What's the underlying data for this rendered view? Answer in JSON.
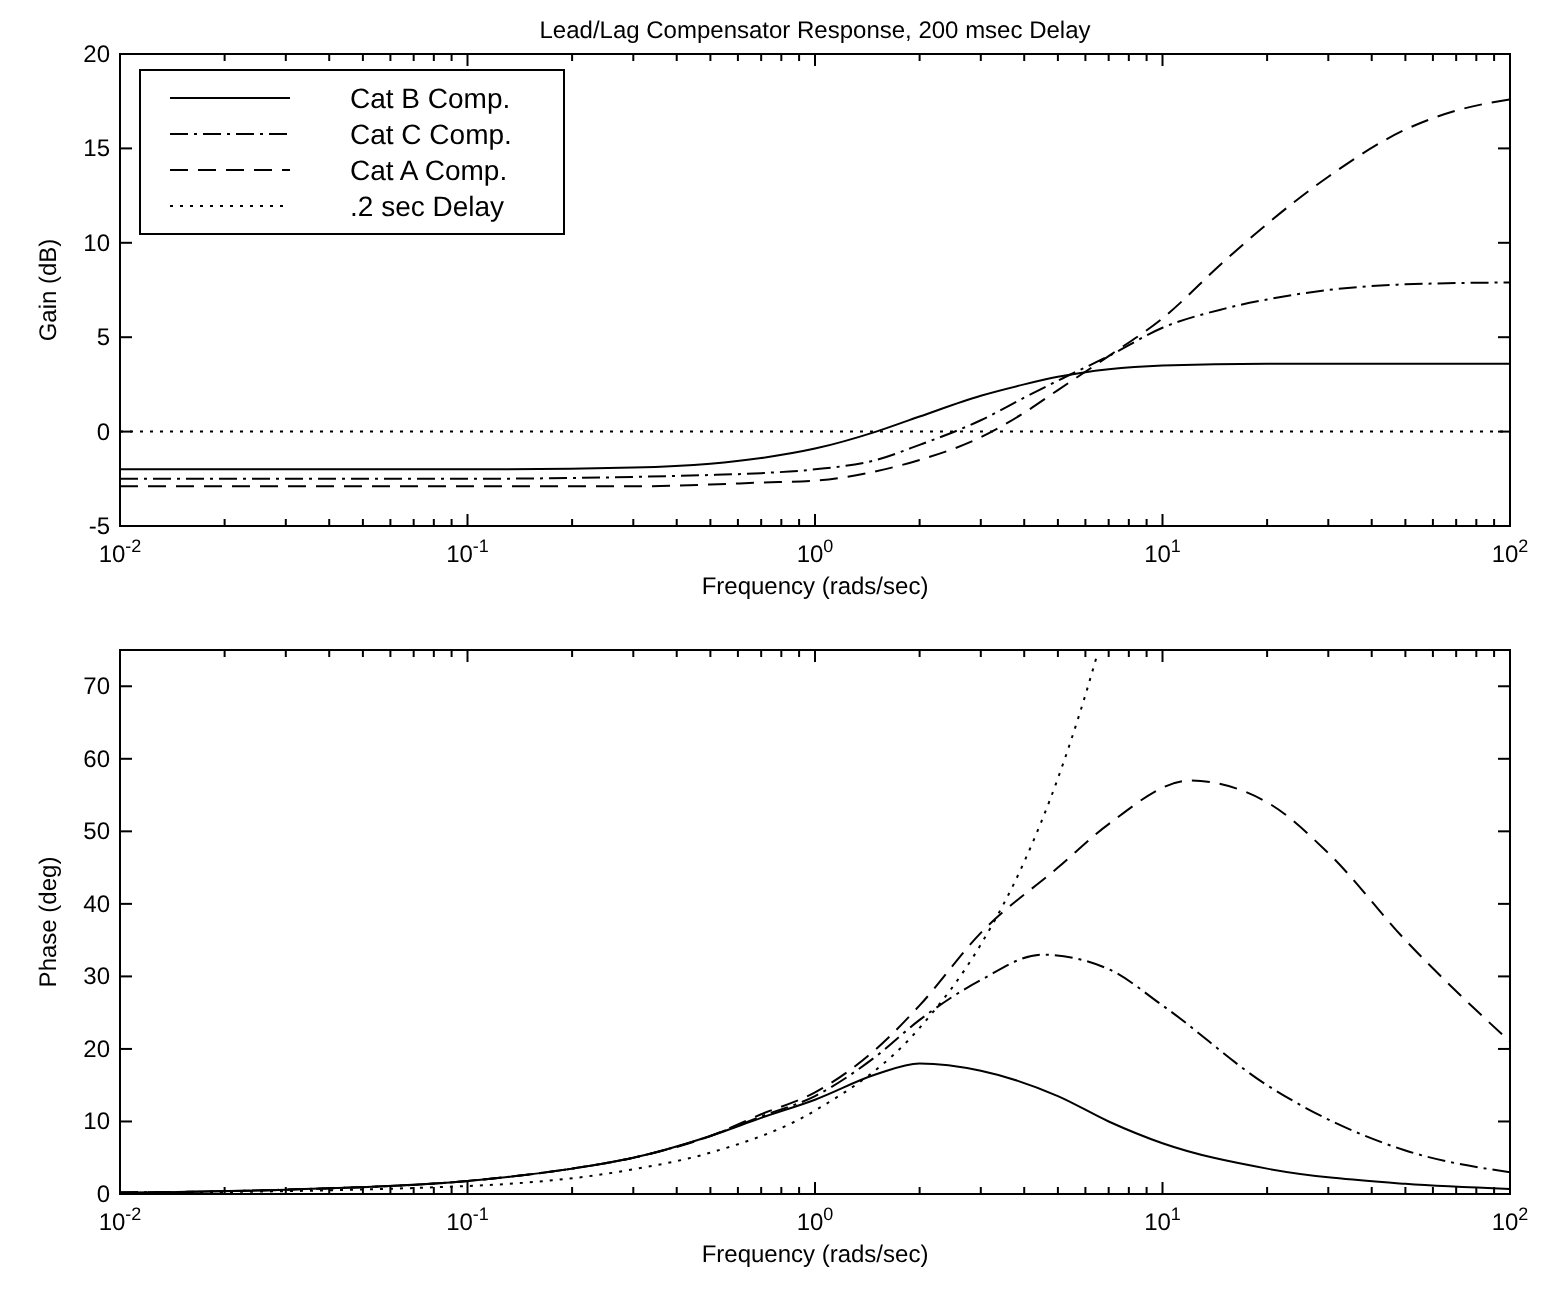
{
  "chart_data": [
    {
      "type": "line",
      "title": "Lead/Lag Compensator Response, 200 msec Delay",
      "xlabel": "Frequency (rads/sec)",
      "ylabel": "Gain (dB)",
      "log": "x",
      "grid": false,
      "legend": "top left",
      "xlim": [
        0.01,
        100
      ],
      "ylim": [
        -5,
        20
      ],
      "xticks": [
        {
          "value": 0.01,
          "label": "10$^{-2}$"
        },
        {
          "value": 0.02,
          "label": null
        },
        {
          "value": 0.03,
          "label": null
        },
        {
          "value": 0.04,
          "label": null
        },
        {
          "value": 0.05,
          "label": null
        },
        {
          "value": 0.06,
          "label": null
        },
        {
          "value": 0.07,
          "label": null
        },
        {
          "value": 0.08,
          "label": null
        },
        {
          "value": 0.09,
          "label": null
        },
        {
          "value": 0.1,
          "label": "10$^{-1}$"
        },
        {
          "value": 0.2,
          "label": null
        },
        {
          "value": 0.3,
          "label": null
        },
        {
          "value": 0.4,
          "label": null
        },
        {
          "value": 0.5,
          "label": null
        },
        {
          "value": 0.6,
          "label": null
        },
        {
          "value": 0.7,
          "label": null
        },
        {
          "value": 0.8,
          "label": null
        },
        {
          "value": 0.9,
          "label": null
        },
        {
          "value": 1,
          "label": "10$^{0}$"
        },
        {
          "value": 2,
          "label": null
        },
        {
          "value": 3,
          "label": null
        },
        {
          "value": 4,
          "label": null
        },
        {
          "value": 5,
          "label": null
        },
        {
          "value": 6,
          "label": null
        },
        {
          "value": 7,
          "label": null
        },
        {
          "value": 8,
          "label": null
        },
        {
          "value": 9,
          "label": null
        },
        {
          "value": 10,
          "label": "10$^{1}$"
        },
        {
          "value": 20,
          "label": null
        },
        {
          "value": 30,
          "label": null
        },
        {
          "value": 40,
          "label": null
        },
        {
          "value": 50,
          "label": null
        },
        {
          "value": 60,
          "label": null
        },
        {
          "value": 70,
          "label": null
        },
        {
          "value": 80,
          "label": null
        },
        {
          "value": 90,
          "label": null
        },
        {
          "value": 100,
          "label": "10$^{2}$"
        }
      ],
      "yticks": [
        -5,
        0,
        5,
        10,
        15,
        20
      ],
      "series": [
        {
          "name": "Cat B Comp.",
          "color": "#000000",
          "line_style": "solid",
          "x": [
            0.01,
            0.1,
            0.3,
            0.5,
            0.7,
            1,
            1.5,
            2,
            3,
            4,
            5,
            7,
            10,
            20,
            100
          ],
          "values": [
            -2,
            -2,
            -1.9,
            -1.7,
            -1.4,
            -0.9,
            0,
            0.8,
            1.9,
            2.5,
            2.9,
            3.3,
            3.5,
            3.6,
            3.6
          ]
        },
        {
          "name": "Cat C Comp.",
          "color": "#000000",
          "line_style": "dashdot",
          "x": [
            0.01,
            0.1,
            0.3,
            0.5,
            0.7,
            1,
            1.5,
            2,
            3,
            4,
            5,
            7,
            10,
            15,
            20,
            30,
            50,
            100
          ],
          "values": [
            -2.5,
            -2.5,
            -2.4,
            -2.3,
            -2.2,
            -2,
            -1.5,
            -0.7,
            0.6,
            1.8,
            2.7,
            4,
            5.5,
            6.5,
            7,
            7.5,
            7.8,
            7.9
          ]
        },
        {
          "name": "Cat A Comp.",
          "color": "#000000",
          "line_style": "dashed",
          "x": [
            0.01,
            0.1,
            0.3,
            0.5,
            0.7,
            1,
            1.5,
            2,
            3,
            4,
            5,
            7,
            10,
            15,
            20,
            30,
            50,
            70,
            100
          ],
          "values": [
            -2.9,
            -2.9,
            -2.9,
            -2.8,
            -2.7,
            -2.6,
            -2.1,
            -1.5,
            -0.3,
            1,
            2.2,
            4,
            6,
            9,
            11,
            13.5,
            16,
            17,
            17.6
          ]
        },
        {
          "name": ".2 sec Delay",
          "color": "#000000",
          "line_style": "dotted",
          "x": [
            0.01,
            100
          ],
          "values": [
            0,
            0
          ]
        }
      ]
    },
    {
      "type": "line",
      "xlabel": "Frequency (rads/sec)",
      "ylabel": "Phase (deg)",
      "log": "x",
      "grid": false,
      "legend": false,
      "xlim": [
        0.01,
        100
      ],
      "ylim": [
        0,
        75
      ],
      "xticks": [
        {
          "value": 0.01,
          "label": "10$^{-2}$"
        },
        {
          "value": 0.02,
          "label": null
        },
        {
          "value": 0.03,
          "label": null
        },
        {
          "value": 0.04,
          "label": null
        },
        {
          "value": 0.05,
          "label": null
        },
        {
          "value": 0.06,
          "label": null
        },
        {
          "value": 0.07,
          "label": null
        },
        {
          "value": 0.08,
          "label": null
        },
        {
          "value": 0.09,
          "label": null
        },
        {
          "value": 0.1,
          "label": "10$^{-1}$"
        },
        {
          "value": 0.2,
          "label": null
        },
        {
          "value": 0.3,
          "label": null
        },
        {
          "value": 0.4,
          "label": null
        },
        {
          "value": 0.5,
          "label": null
        },
        {
          "value": 0.6,
          "label": null
        },
        {
          "value": 0.7,
          "label": null
        },
        {
          "value": 0.8,
          "label": null
        },
        {
          "value": 0.9,
          "label": null
        },
        {
          "value": 1,
          "label": "10$^{0}$"
        },
        {
          "value": 2,
          "label": null
        },
        {
          "value": 3,
          "label": null
        },
        {
          "value": 4,
          "label": null
        },
        {
          "value": 5,
          "label": null
        },
        {
          "value": 6,
          "label": null
        },
        {
          "value": 7,
          "label": null
        },
        {
          "value": 8,
          "label": null
        },
        {
          "value": 9,
          "label": null
        },
        {
          "value": 10,
          "label": "10$^{1}$"
        },
        {
          "value": 20,
          "label": null
        },
        {
          "value": 30,
          "label": null
        },
        {
          "value": 40,
          "label": null
        },
        {
          "value": 50,
          "label": null
        },
        {
          "value": 60,
          "label": null
        },
        {
          "value": 70,
          "label": null
        },
        {
          "value": 80,
          "label": null
        },
        {
          "value": 90,
          "label": null
        },
        {
          "value": 100,
          "label": "10$^{2}$"
        }
      ],
      "yticks": [
        0,
        10,
        20,
        30,
        40,
        50,
        60,
        70
      ],
      "series": [
        {
          "color": "#000000",
          "line_style": "solid",
          "x": [
            0.01,
            0.03,
            0.1,
            0.2,
            0.3,
            0.5,
            0.7,
            1,
            1.5,
            2,
            3,
            5,
            7,
            10,
            20,
            50,
            100
          ],
          "values": [
            0.2,
            0.6,
            1.8,
            3.5,
            5,
            8,
            10.5,
            13,
            16.5,
            18,
            17,
            13.5,
            10,
            7,
            3.5,
            1.4,
            0.7
          ]
        },
        {
          "color": "#000000",
          "line_style": "dashdot",
          "x": [
            0.01,
            0.03,
            0.1,
            0.2,
            0.3,
            0.5,
            0.7,
            1,
            1.5,
            2,
            3,
            4.5,
            7,
            10,
            20,
            50,
            100
          ],
          "values": [
            0.2,
            0.6,
            1.8,
            3.5,
            5,
            8,
            10.7,
            13.5,
            19,
            24,
            29.5,
            33,
            31,
            26,
            15,
            6,
            3
          ]
        },
        {
          "color": "#000000",
          "line_style": "dashed",
          "x": [
            0.01,
            0.03,
            0.1,
            0.2,
            0.3,
            0.5,
            0.7,
            1,
            1.5,
            2,
            3,
            5,
            7,
            12,
            20,
            30,
            50,
            100
          ],
          "values": [
            0.2,
            0.6,
            1.8,
            3.5,
            5,
            8,
            11,
            14,
            20,
            26,
            36,
            45,
            51,
            57,
            54,
            47,
            35,
            21
          ]
        },
        {
          "color": "#000000",
          "line_style": "dotted",
          "x": [
            0.01,
            0.1,
            0.3,
            0.5,
            1,
            2,
            3,
            4,
            5,
            6,
            6.5
          ],
          "values": [
            0.1,
            1.1,
            3.4,
            5.7,
            11.5,
            22.9,
            34.4,
            45.8,
            57.3,
            68.8,
            74.5
          ]
        }
      ]
    }
  ]
}
